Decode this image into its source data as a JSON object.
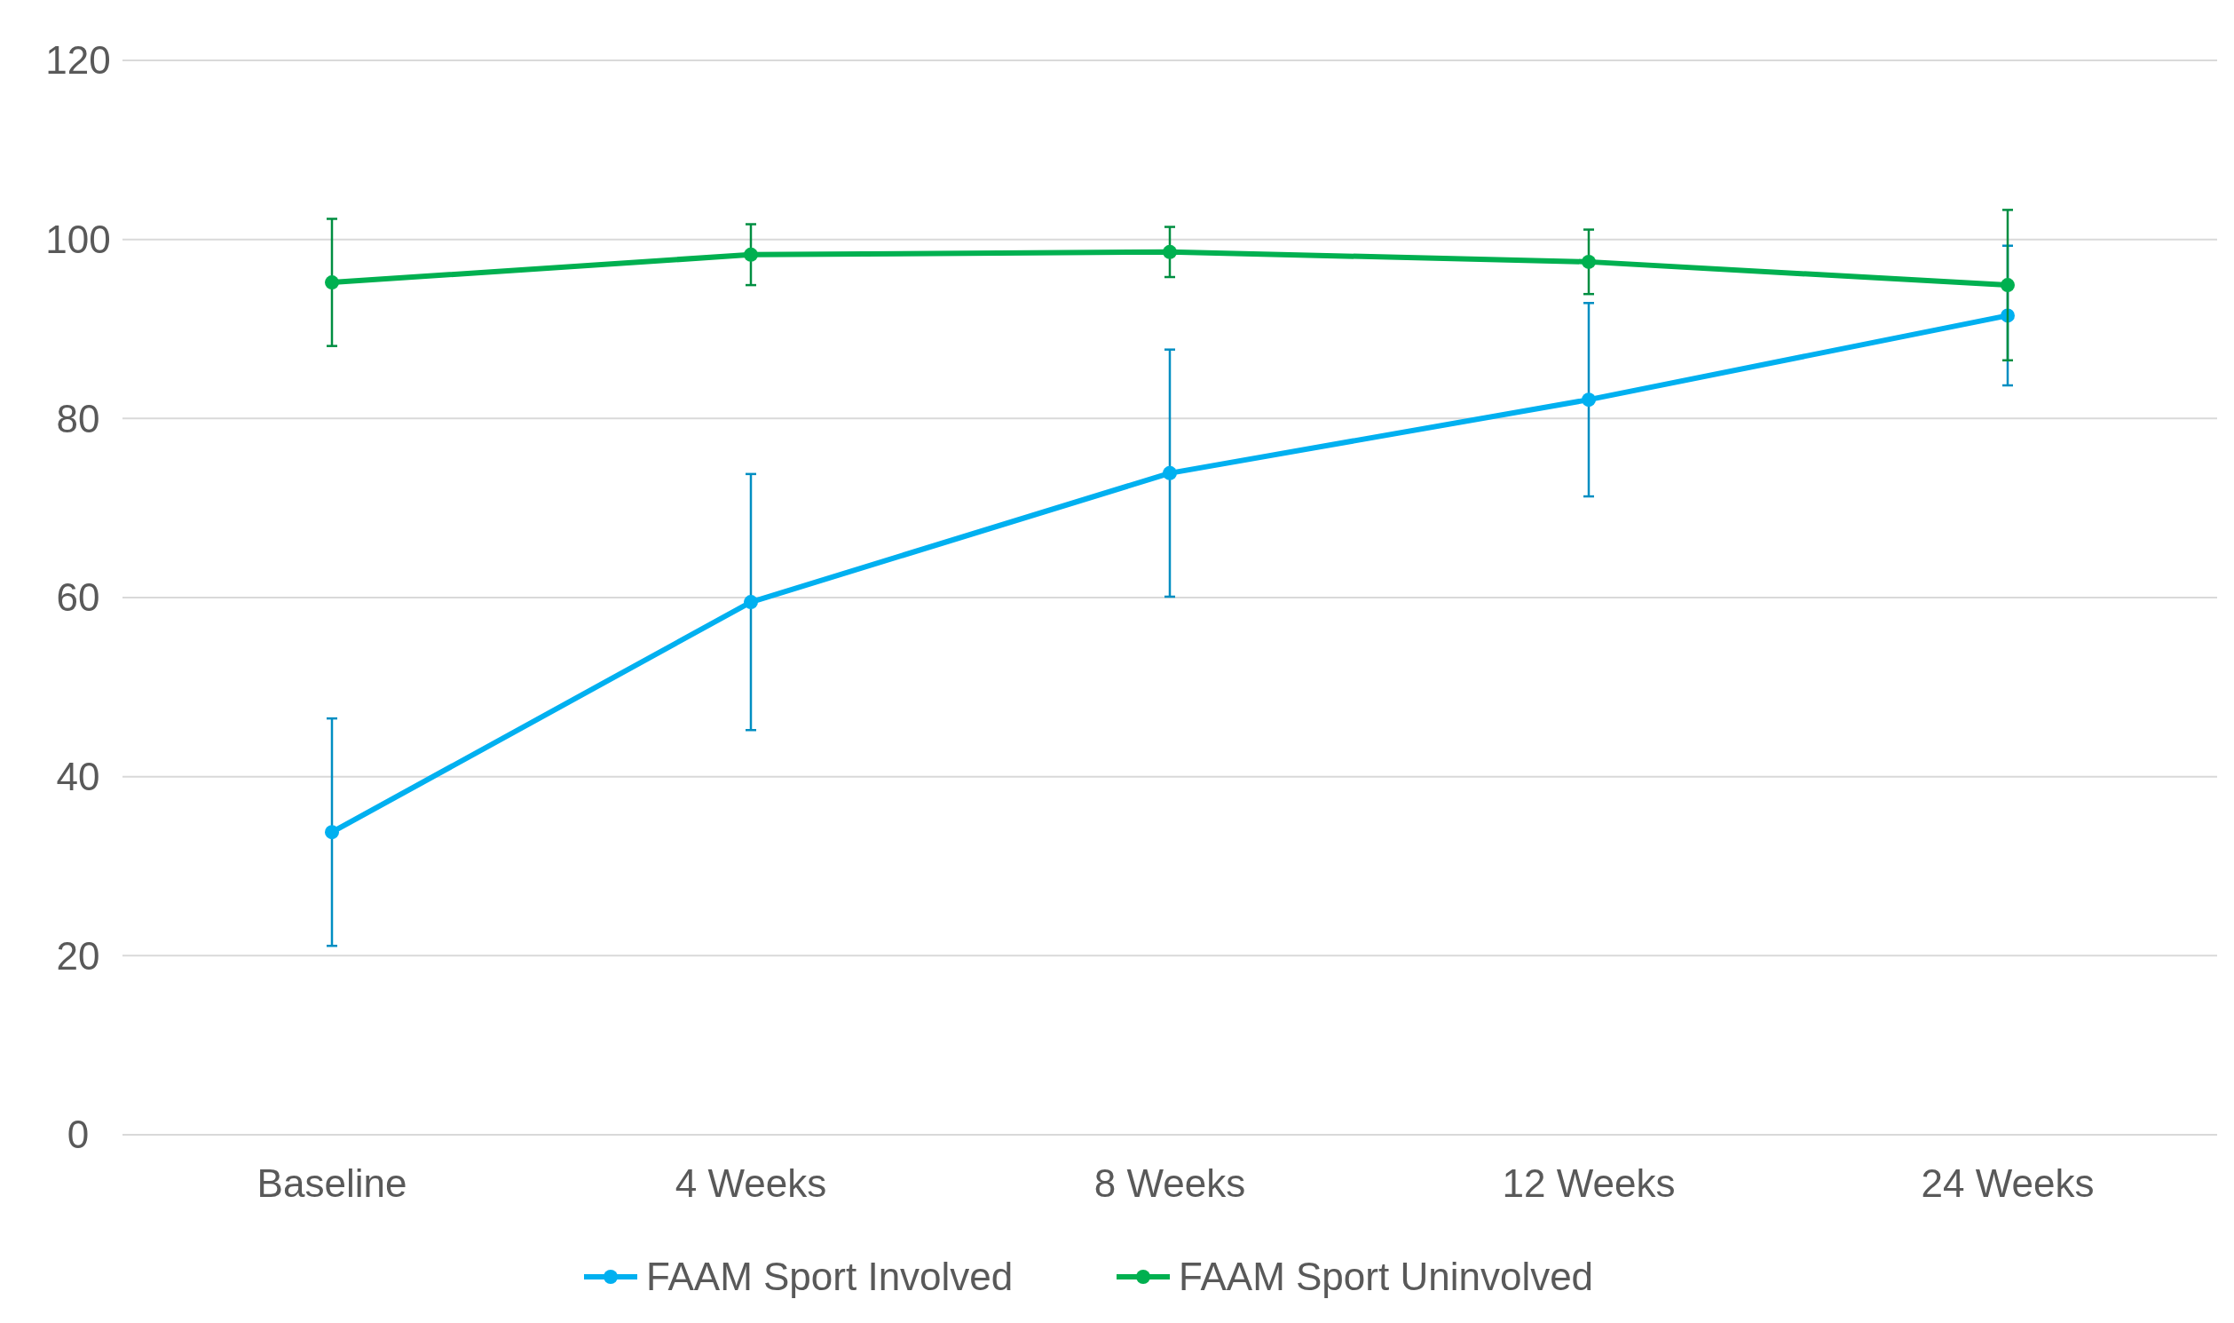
{
  "chart_data": {
    "type": "line",
    "categories": [
      "Baseline",
      "4 Weeks",
      "8 Weeks",
      "12 Weeks",
      "24 Weeks"
    ],
    "series": [
      {
        "name": "FAAM Sport Involved",
        "color": "#00b0f0",
        "values": [
          33.8,
          59.5,
          73.9,
          82.1,
          91.5
        ],
        "errors": [
          12.7,
          14.3,
          13.8,
          10.8,
          7.8
        ]
      },
      {
        "name": "FAAM Sport Uninvolved",
        "color": "#00b050",
        "values": [
          95.2,
          98.3,
          98.6,
          97.5,
          94.9
        ],
        "errors": [
          7.1,
          3.4,
          2.8,
          3.6,
          8.4
        ]
      }
    ],
    "ylim": [
      0,
      120
    ],
    "yticks": [
      0,
      20,
      40,
      60,
      80,
      100,
      120
    ],
    "grid": "y",
    "legend": "bottom",
    "marker": "circle",
    "line_style": "solid"
  }
}
